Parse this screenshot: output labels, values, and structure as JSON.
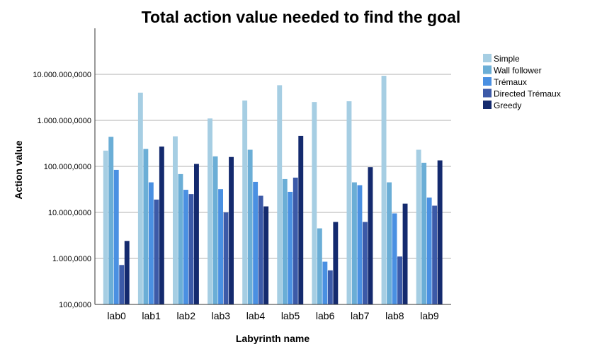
{
  "chart_data": {
    "type": "bar",
    "title": "Total action value needed to find the goal",
    "xlabel": "Labyrinth name",
    "ylabel": "Action value",
    "yscale": "log",
    "ylim": [
      100000,
      100000000000
    ],
    "yticks": [
      100000,
      1000000,
      10000000,
      100000000,
      1000000000,
      10000000000
    ],
    "ytick_labels": [
      "100,0000",
      "1.000,0000",
      "10.000,0000",
      "100.000,0000",
      "1.000.000,0000",
      "10.000.000,0000"
    ],
    "grid": "horizontal",
    "legend_position": "right",
    "categories": [
      "lab0",
      "lab1",
      "lab2",
      "lab3",
      "lab4",
      "lab5",
      "lab6",
      "lab7",
      "lab8",
      "lab9"
    ],
    "series": [
      {
        "name": "Simple",
        "color": "#a6cee3",
        "values": [
          220000000,
          4000000000,
          450000000,
          1100000000,
          2700000000,
          5800000000,
          2500000000,
          2600000000,
          9300000000,
          230000000
        ]
      },
      {
        "name": "Wall follower",
        "color": "#6baed6",
        "values": [
          440000000,
          240000000,
          68000000,
          165000000,
          230000000,
          53000000,
          4500000,
          45000000,
          45000000,
          120000000
        ]
      },
      {
        "name": "Trémaux",
        "color": "#4a90e2",
        "values": [
          84000000,
          45000000,
          31000000,
          32000000,
          46000000,
          28000000,
          850000,
          39000000,
          9500000,
          21000000
        ]
      },
      {
        "name": "Directed Trémaux",
        "color": "#3c5aa8",
        "values": [
          720000,
          19000000,
          25000000,
          10000000,
          23000000,
          57000000,
          550000,
          6200000,
          1100000,
          14000000
        ]
      },
      {
        "name": "Greedy",
        "color": "#142a6e",
        "values": [
          2400000,
          270000000,
          113000000,
          160000000,
          13500000,
          460000000,
          6200000,
          96000000,
          15500000,
          135000000
        ]
      }
    ]
  }
}
